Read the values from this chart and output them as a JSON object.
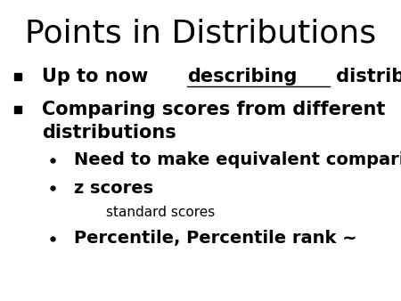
{
  "title": "Points in Distributions",
  "title_fontsize": 26,
  "background_color": "#ffffff",
  "text_color": "#000000",
  "bullet1_pre": "Up to now ",
  "bullet1_underline": "describing",
  "bullet1_post": " distributions",
  "bullet2_line1": "Comparing scores from different",
  "bullet2_line2": "distributions",
  "sub_bullet1": "Need to make equivalent comparisons",
  "sub_bullet2": "z scores",
  "sub_sub": "standard scores",
  "sub_bullet3": "Percentile, Percentile rank ~",
  "bullet_fontsize": 15,
  "sub_bullet_fontsize": 14,
  "sub_sub_fontsize": 11
}
